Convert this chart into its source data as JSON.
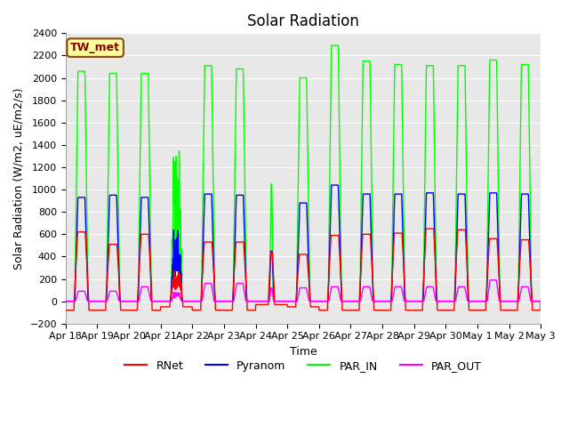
{
  "title": "Solar Radiation",
  "ylabel": "Solar Radiation (W/m2, uE/m2/s)",
  "xlabel": "Time",
  "ylim": [
    -200,
    2400
  ],
  "yticks": [
    -200,
    0,
    200,
    400,
    600,
    800,
    1000,
    1200,
    1400,
    1600,
    1800,
    2000,
    2200,
    2400
  ],
  "legend_labels": [
    "RNet",
    "Pyranom",
    "PAR_IN",
    "PAR_OUT"
  ],
  "legend_colors": [
    "red",
    "blue",
    "#00FF00",
    "magenta"
  ],
  "station_label": "TW_met",
  "station_label_color": "#8B0000",
  "station_box_facecolor": "#FFFF99",
  "station_box_edgecolor": "#8B4513",
  "plot_bg_color": "#E8E8E8",
  "fig_bg_color": "#FFFFFF",
  "grid_color": "white",
  "n_days": 15,
  "x_tick_labels": [
    "Apr 18",
    "Apr 19",
    "Apr 20",
    "Apr 21",
    "Apr 22",
    "Apr 23",
    "Apr 24",
    "Apr 25",
    "Apr 26",
    "Apr 27",
    "Apr 28",
    "Apr 29",
    "Apr 30",
    "May 1",
    "May 2",
    "May 3"
  ],
  "title_fontsize": 12,
  "label_fontsize": 9,
  "tick_fontsize": 8,
  "legend_fontsize": 9,
  "line_width": 1.0,
  "par_in_peaks": [
    2060,
    2040,
    2040,
    1430,
    2110,
    2080,
    1050,
    2000,
    2290,
    2150,
    2120,
    2110,
    2110,
    2160,
    2120
  ],
  "pyr_peaks": [
    930,
    950,
    930,
    640,
    960,
    950,
    450,
    880,
    1040,
    960,
    960,
    970,
    960,
    970,
    960
  ],
  "rnet_peaks": [
    620,
    510,
    600,
    280,
    530,
    530,
    440,
    420,
    590,
    600,
    610,
    650,
    640,
    560,
    550
  ],
  "par_out_peaks": [
    90,
    90,
    130,
    80,
    160,
    160,
    120,
    120,
    130,
    130,
    130,
    130,
    130,
    190,
    130
  ],
  "rnet_night": [
    -80,
    -80,
    -80,
    -50,
    -80,
    -80,
    -30,
    -50,
    -80,
    -80,
    -80,
    -80,
    -80,
    -80,
    -80
  ]
}
